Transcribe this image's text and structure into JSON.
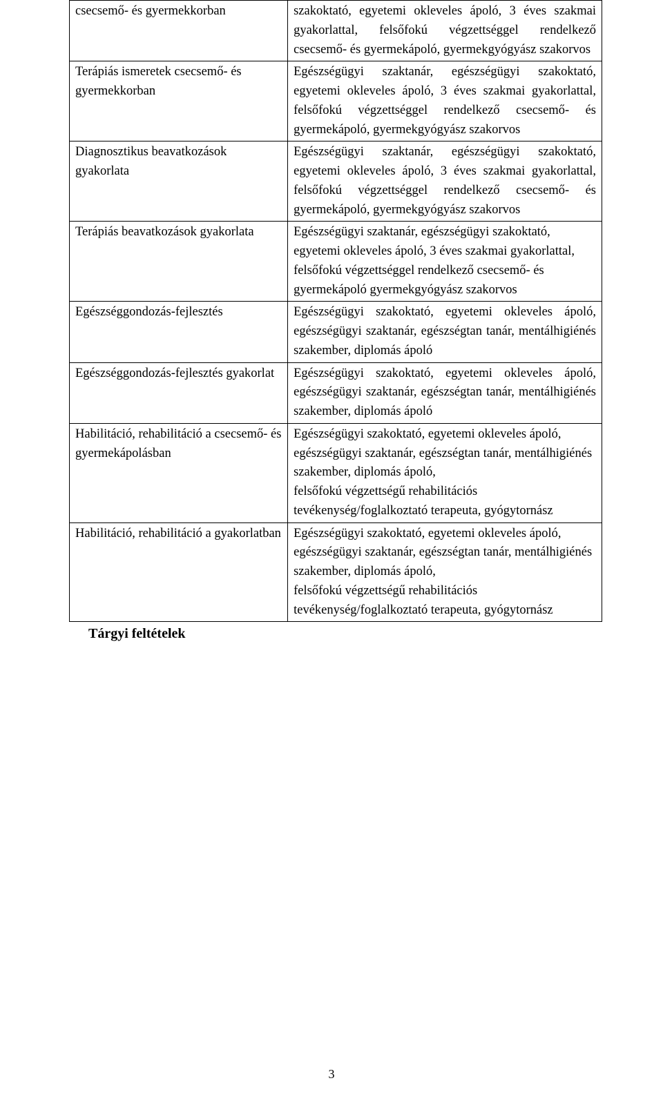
{
  "page": {
    "number": "3",
    "caption": "Tárgyi feltételek",
    "font": {
      "body_family": "Book Antiqua / Palatino",
      "body_size_pt": 14,
      "caption_family": "Times New Roman",
      "caption_weight": "bold",
      "caption_size_pt": 15
    },
    "colors": {
      "text": "#000000",
      "border": "#000000",
      "background": "#ffffff"
    }
  },
  "table": {
    "type": "table",
    "column_widths_pct": [
      41,
      59
    ],
    "border_color": "#000000",
    "rows": [
      {
        "left": "csecsemő- és gyermekkorban",
        "right": "szakoktató, egyetemi okleveles ápoló, 3 éves szakmai gyakorlattal, felsőfokú végzettséggel rendelkező csecsemő- és gyermekápoló, gyermekgyógyász szakorvos",
        "right_justify": true
      },
      {
        "left": "Terápiás ismeretek csecsemő- és gyermekkorban",
        "right": "Egészségügyi szaktanár, egészségügyi szakoktató, egyetemi okleveles ápoló, 3 éves szakmai gyakorlattal, felsőfokú végzettséggel rendelkező csecsemő- és gyermekápoló, gyermekgyógyász szakorvos",
        "right_justify": true
      },
      {
        "left": "Diagnosztikus beavatkozások gyakorlata",
        "right": "Egészségügyi szaktanár, egészségügyi szakoktató, egyetemi okleveles ápoló, 3 éves szakmai gyakorlattal, felsőfokú végzettséggel rendelkező csecsemő- és gyermekápoló, gyermekgyógyász szakorvos",
        "right_justify": true
      },
      {
        "left": "Terápiás beavatkozások gyakorlata",
        "right": "Egészségügyi szaktanár, egészségügyi szakoktató, egyetemi okleveles ápoló, 3 éves szakmai gyakorlattal, felsőfokú végzettséggel rendelkező csecsemő- és gyermekápoló gyermekgyógyász szakorvos",
        "right_justify": false
      },
      {
        "left": "Egészséggondozás-fejlesztés",
        "right": "Egészségügyi szakoktató, egyetemi okleveles ápoló, egészségügyi szaktanár, egészségtan tanár, mentálhigiénés szakember, diplomás ápoló",
        "right_justify": true
      },
      {
        "left": "Egészséggondozás-fejlesztés gyakorlat",
        "right": "Egészségügyi szakoktató, egyetemi okleveles ápoló, egészségügyi szaktanár, egészségtan tanár, mentálhigiénés szakember, diplomás ápoló",
        "right_justify": true
      },
      {
        "left": "Habilitáció, rehabilitáció a csecsemő- és gyermekápolásban",
        "right": "Egészségügyi szakoktató, egyetemi okleveles ápoló, egészségügyi szaktanár, egészségtan tanár, mentálhigiénés szakember, diplomás ápoló,\nfelsőfokú végzettségű rehabilitációs tevékenység/foglalkoztató terapeuta, gyógytornász",
        "right_justify": false
      },
      {
        "left": "Habilitáció, rehabilitáció a gyakorlatban",
        "right": "Egészségügyi szakoktató, egyetemi okleveles ápoló, egészségügyi szaktanár, egészségtan tanár, mentálhigiénés szakember, diplomás ápoló,\nfelsőfokú végzettségű rehabilitációs tevékenység/foglalkoztató terapeuta, gyógytornász",
        "right_justify": false
      }
    ]
  }
}
